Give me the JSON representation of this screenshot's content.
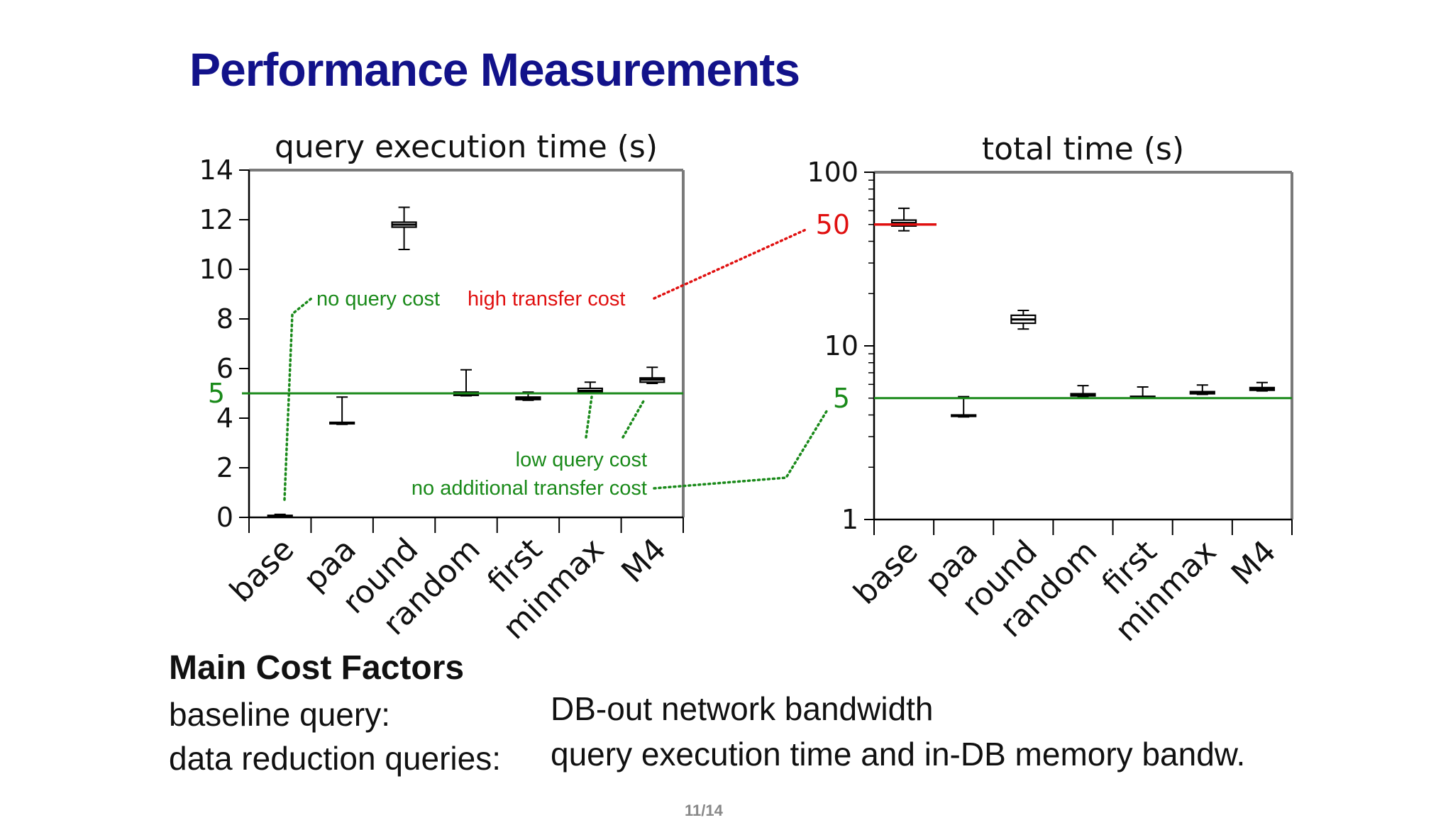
{
  "slide": {
    "title": "Performance Measurements",
    "page": "11/14"
  },
  "cost_factors": {
    "heading": "Main Cost Factors",
    "rows": [
      {
        "label": "baseline query:",
        "value": "DB-out network bandwidth"
      },
      {
        "label": "data reduction queries:",
        "value": "query execution time and in-DB memory bandw."
      }
    ]
  },
  "colors": {
    "title": "#12128a",
    "green": "#1a8a1a",
    "red": "#e01010",
    "box": "#000000",
    "frame": "#7a7a7a"
  },
  "chart_data": [
    {
      "type": "box",
      "title": "query execution time (s)",
      "categories": [
        "base",
        "paa",
        "round",
        "random",
        "first",
        "minmax",
        "M4"
      ],
      "ylim": [
        0,
        14
      ],
      "yscale": "linear",
      "yticks": [
        0,
        2,
        4,
        6,
        8,
        10,
        12,
        14
      ],
      "boxes": [
        {
          "min": 0.0,
          "q1": 0.02,
          "median": 0.05,
          "q3": 0.08,
          "max": 0.12
        },
        {
          "min": 3.75,
          "q1": 3.78,
          "median": 3.8,
          "q3": 3.83,
          "max": 4.85
        },
        {
          "min": 10.8,
          "q1": 11.7,
          "median": 11.8,
          "q3": 11.9,
          "max": 12.5
        },
        {
          "min": 4.9,
          "q1": 4.92,
          "median": 4.95,
          "q3": 5.05,
          "max": 5.95
        },
        {
          "min": 4.72,
          "q1": 4.75,
          "median": 4.8,
          "q3": 4.85,
          "max": 5.05
        },
        {
          "min": 5.0,
          "q1": 5.05,
          "median": 5.1,
          "q3": 5.2,
          "max": 5.45
        },
        {
          "min": 5.4,
          "q1": 5.45,
          "median": 5.55,
          "q3": 5.62,
          "max": 6.05
        }
      ],
      "reference_line": {
        "value": 5,
        "label": "5",
        "color": "#1a8a1a"
      },
      "annotations": [
        {
          "text": "no query cost",
          "color": "#1a8a1a"
        },
        {
          "text": "high transfer cost",
          "color": "#e01010"
        },
        {
          "text": "low query cost",
          "color": "#1a8a1a"
        },
        {
          "text": "no additional transfer cost",
          "color": "#1a8a1a"
        }
      ]
    },
    {
      "type": "box",
      "title": "total time (s)",
      "categories": [
        "base",
        "paa",
        "round",
        "random",
        "first",
        "minmax",
        "M4"
      ],
      "ylim": [
        1,
        100
      ],
      "yscale": "log",
      "yticks": [
        1,
        10,
        100
      ],
      "boxes": [
        {
          "min": 46,
          "q1": 49,
          "median": 51,
          "q3": 53,
          "max": 62
        },
        {
          "min": 3.9,
          "q1": 3.93,
          "median": 3.96,
          "q3": 4.0,
          "max": 5.1
        },
        {
          "min": 12.5,
          "q1": 13.5,
          "median": 14.2,
          "q3": 15.0,
          "max": 16.0
        },
        {
          "min": 5.1,
          "q1": 5.15,
          "median": 5.2,
          "q3": 5.3,
          "max": 5.9
        },
        {
          "min": 5.02,
          "q1": 5.05,
          "median": 5.08,
          "q3": 5.12,
          "max": 5.8
        },
        {
          "min": 5.25,
          "q1": 5.3,
          "median": 5.35,
          "q3": 5.45,
          "max": 5.95
        },
        {
          "min": 5.5,
          "q1": 5.55,
          "median": 5.65,
          "q3": 5.75,
          "max": 6.15
        }
      ],
      "reference_lines": [
        {
          "value": 5,
          "label": "5",
          "color": "#1a8a1a"
        },
        {
          "value": 50,
          "label": "50",
          "color": "#e01010"
        }
      ]
    }
  ]
}
